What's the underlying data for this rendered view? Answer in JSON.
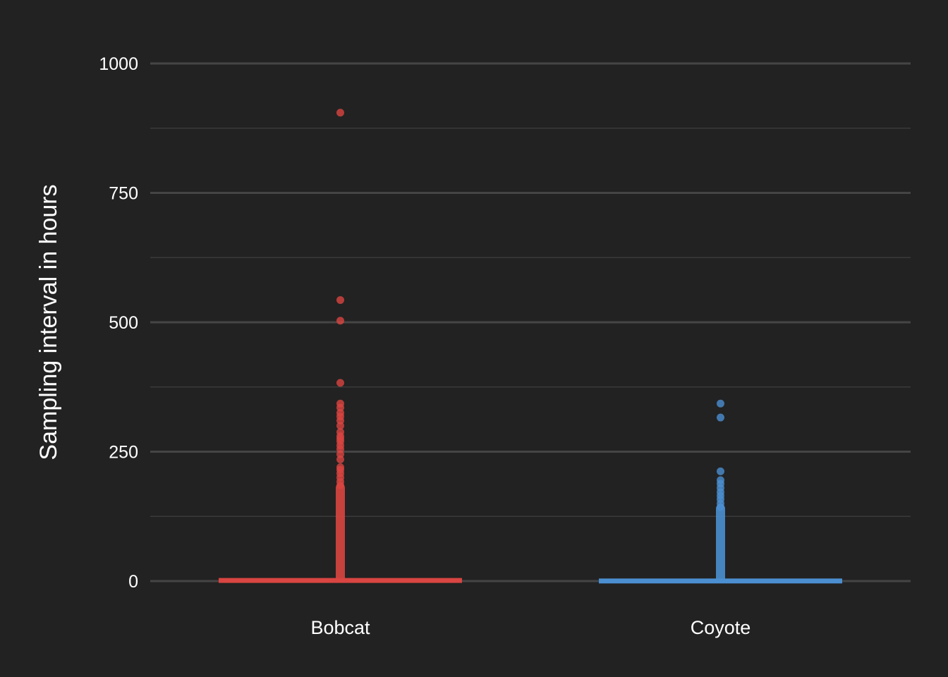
{
  "chart_data": {
    "type": "boxplot",
    "title": "",
    "xlabel": "",
    "ylabel": "Sampling interval in hours",
    "ylim": [
      0,
      1000
    ],
    "yticks": [
      "0",
      "250",
      "500",
      "750",
      "1000"
    ],
    "ytick_values": [
      0,
      250,
      500,
      750,
      1000
    ],
    "minor_grid_values": [
      125,
      375,
      625,
      875
    ],
    "grid": true,
    "legend": "none",
    "background": "#222222",
    "categories": [
      "Bobcat",
      "Coyote"
    ],
    "series": [
      {
        "category": "Bobcat",
        "color": "#d94541",
        "box": {
          "q1": 2,
          "median": 4,
          "q3": 6
        },
        "whisker_max": 130,
        "dense_outlier_range": [
          130,
          180
        ],
        "outliers": [
          905,
          543,
          503,
          383,
          343,
          335,
          325,
          318,
          310,
          300,
          288,
          280,
          275,
          270,
          262,
          255,
          245,
          235,
          220,
          215,
          208,
          200,
          192,
          185
        ]
      },
      {
        "category": "Coyote",
        "color": "#4b8fd1",
        "box": {
          "q1": 1,
          "median": 3,
          "q3": 5
        },
        "whisker_max": 0,
        "dense_outlier_range": [
          0,
          140
        ],
        "outliers": [
          343,
          316,
          212,
          195,
          188,
          180,
          172,
          165,
          158,
          150,
          143
        ]
      }
    ]
  }
}
